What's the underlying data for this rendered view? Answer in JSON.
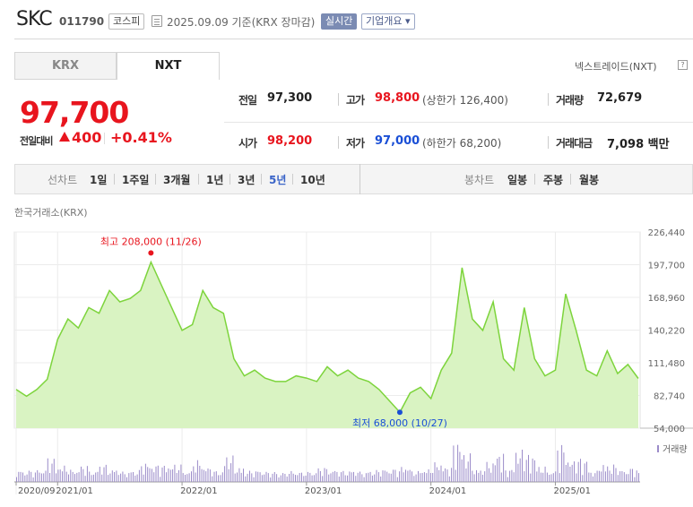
{
  "header": {
    "name": "SKC",
    "code": "011790",
    "market": "코스피",
    "date": "2025.09.09  기준(KRX 장마감)",
    "realtime": "실시간",
    "company_info": "기업개요 ▾"
  },
  "tabs": {
    "krx": "KRX",
    "nxt": "NXT"
  },
  "nextrade_label": "넥스트레이드(NXT)",
  "nextrade_help": "?",
  "price": {
    "current": "97,700",
    "change_label": "전일대비",
    "change_value": "400",
    "change_rate": "+0.41%"
  },
  "quote": {
    "prev_close": {
      "label": "전일",
      "value": "97,300"
    },
    "high": {
      "label": "고가",
      "value": "98,800",
      "sub": "(상한가 126,400)"
    },
    "volume": {
      "label": "거래량",
      "value": "72,679"
    },
    "open": {
      "label": "시가",
      "value": "98,200"
    },
    "low": {
      "label": "저가",
      "value": "97,000",
      "sub": "(하한가 68,200)"
    },
    "amount": {
      "label": "거래대금",
      "value": "7,098 백만"
    }
  },
  "period_bar": {
    "line_label": "선차트",
    "periods": [
      "1일",
      "1주일",
      "3개월",
      "1년",
      "3년",
      "5년",
      "10년"
    ],
    "active": "5년",
    "candle_label": "봉차트",
    "candles": [
      "일봉",
      "주봉",
      "월봉"
    ]
  },
  "source_label": "한국거래소(KRX)",
  "colors": {
    "up": "#e8151e",
    "down": "#1a4fd6",
    "line": "#7dd43c",
    "area": "#d9f3c2",
    "volume": "#9b8bc9"
  },
  "chart_data": {
    "type": "area",
    "ylim": [
      54000,
      226440
    ],
    "yticks": [
      "226,440",
      "197,700",
      "168,960",
      "140,220",
      "111,480",
      "82,740",
      "54,000"
    ],
    "xticks": [
      "2020/09",
      "2021/01",
      "2022/01",
      "2023/01",
      "2024/01",
      "2025/01"
    ],
    "x": [
      "2020/09",
      "2020/10",
      "2020/11",
      "2020/12",
      "2021/01",
      "2021/02",
      "2021/03",
      "2021/04",
      "2021/05",
      "2021/06",
      "2021/07",
      "2021/08",
      "2021/09",
      "2021/10",
      "2021/11",
      "2021/12",
      "2022/01",
      "2022/02",
      "2022/03",
      "2022/04",
      "2022/05",
      "2022/06",
      "2022/07",
      "2022/08",
      "2022/09",
      "2022/10",
      "2022/11",
      "2022/12",
      "2023/01",
      "2023/02",
      "2023/03",
      "2023/04",
      "2023/05",
      "2023/06",
      "2023/07",
      "2023/08",
      "2023/09",
      "2023/10",
      "2023/11",
      "2023/12",
      "2024/01",
      "2024/02",
      "2024/03",
      "2024/04",
      "2024/05",
      "2024/06",
      "2024/07",
      "2024/08",
      "2024/09",
      "2024/10",
      "2024/11",
      "2024/12",
      "2025/01",
      "2025/02",
      "2025/03",
      "2025/04",
      "2025/05",
      "2025/06",
      "2025/07",
      "2025/08",
      "2025/09"
    ],
    "series": [
      {
        "values": [
          88000,
          82000,
          88000,
          97000,
          132000,
          150000,
          142000,
          160000,
          155000,
          175000,
          165000,
          168000,
          175000,
          200000,
          180000,
          160000,
          140000,
          145000,
          175000,
          160000,
          155000,
          115000,
          100000,
          105000,
          98000,
          95000,
          95000,
          100000,
          98000,
          95000,
          108000,
          100000,
          105000,
          98000,
          95000,
          88000,
          78000,
          68000,
          85000,
          90000,
          80000,
          105000,
          120000,
          195000,
          150000,
          140000,
          165000,
          115000,
          105000,
          160000,
          115000,
          100000,
          105000,
          172000,
          140000,
          105000,
          100000,
          122000,
          102000,
          110000,
          97700
        ]
      }
    ],
    "volume_label": "거래량",
    "high_annotation": {
      "label": "최고 208,000 (11/26)",
      "value": 208000,
      "x": "2021/10"
    },
    "low_annotation": {
      "label": "최저 68,000 (10/27)",
      "value": 68000,
      "x": "2023/10"
    }
  }
}
